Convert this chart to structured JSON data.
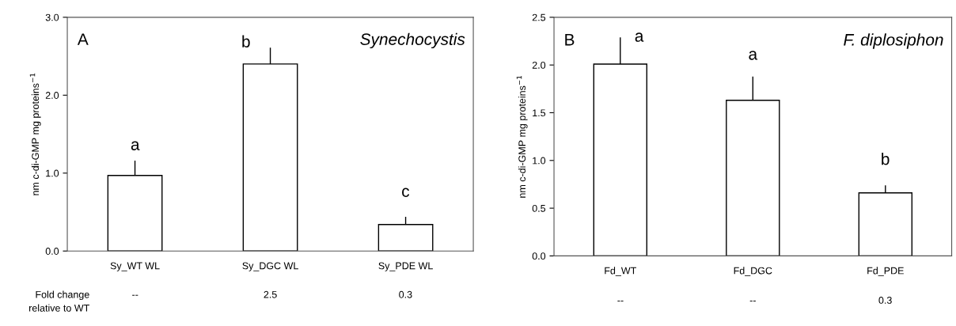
{
  "chart_data": [
    {
      "type": "bar",
      "title": "Synechocystis",
      "ylabel": "nm c-di-GMP mg proteins$^{−1}$",
      "categories": [
        "Sy_WT WL",
        "Sy_DGC WL",
        "Sy_PDE WL"
      ],
      "values": [
        0.97,
        2.4,
        0.34
      ],
      "color": "#ffffff",
      "errors": [
        0.19,
        0.21,
        0.1
      ],
      "ylim": [
        0,
        3.0
      ],
      "yticks": [
        {
          "value": 0,
          "label": "0.0"
        },
        {
          "value": 1,
          "label": "1.0"
        },
        {
          "value": 2,
          "label": "2.0"
        },
        {
          "value": 3,
          "label": "3.0"
        }
      ],
      "grid": false,
      "legend": false,
      "annotations": [
        "A",
        "Fold change\nrelative to WT",
        "a",
        "b",
        "c",
        "--",
        "2.5",
        "0.3"
      ]
    },
    {
      "type": "bar",
      "title": "F. diplosiphon",
      "ylabel": "nm c-di-GMP mg proteins$^{−1}$",
      "categories": [
        "Fd_WT",
        "Fd_DGC",
        "Fd_PDE"
      ],
      "values": [
        2.01,
        1.63,
        0.66
      ],
      "color": "#ffffff",
      "errors": [
        0.28,
        0.25,
        0.08
      ],
      "ylim": [
        0,
        2.5
      ],
      "yticks": [
        {
          "value": 0,
          "label": "0.0"
        },
        {
          "value": 0.5,
          "label": "0.5"
        },
        {
          "value": 1,
          "label": "1.0"
        },
        {
          "value": 1.5,
          "label": "1.5"
        },
        {
          "value": 2,
          "label": "2.0"
        },
        {
          "value": 2.5,
          "label": "2.5"
        }
      ],
      "grid": false,
      "legend": false,
      "annotations": [
        "B",
        "a",
        "a",
        "b",
        "--",
        "--",
        "0.3"
      ]
    }
  ]
}
